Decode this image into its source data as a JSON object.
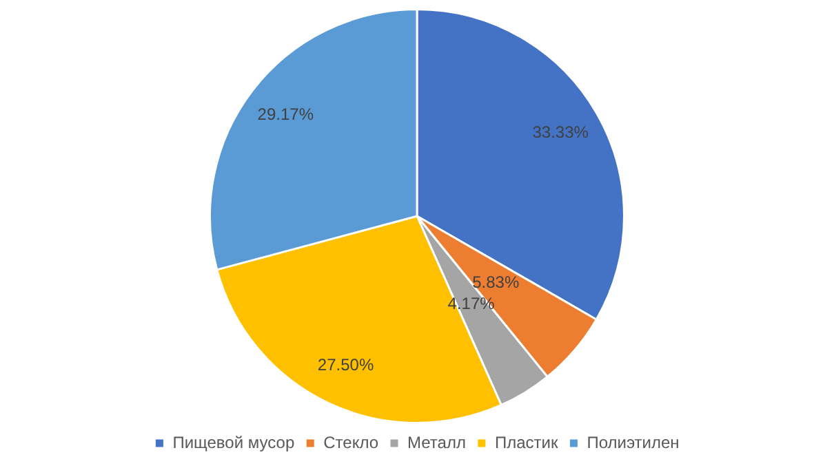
{
  "chart_data": {
    "type": "pie",
    "categories": [
      "Пищевой мусор",
      "Стекло",
      "Металл",
      "Пластик",
      "Полиэтилен"
    ],
    "values": [
      33.33,
      5.83,
      4.17,
      27.5,
      29.17
    ],
    "colors": [
      "#4472c4",
      "#ed7d31",
      "#a5a5a5",
      "#ffc000",
      "#5b9bd5"
    ],
    "value_labels": [
      "33.33%",
      "5.83%",
      "4.17%",
      "27.50%",
      "29.17%"
    ],
    "legend": "bottom"
  }
}
